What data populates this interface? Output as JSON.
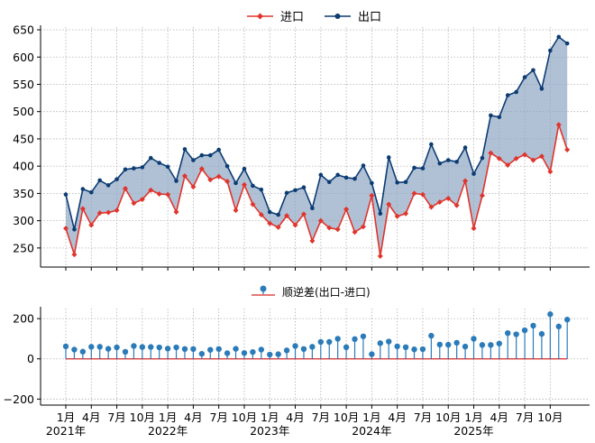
{
  "chart_data": [
    {
      "type": "line",
      "title": "",
      "legend_position": "top-center",
      "grid": true,
      "ylim": [
        215,
        655
      ],
      "yticks": [
        250,
        300,
        350,
        400,
        450,
        500,
        550,
        600,
        650
      ],
      "fill_between": true,
      "colors": {
        "import": "#e0342c",
        "export": "#0c3c73",
        "fill": "#8fa7c4"
      },
      "series": [
        {
          "name": "进口",
          "key": "import",
          "values": [
            286,
            238,
            322,
            292,
            314,
            315,
            319,
            359,
            332,
            339,
            356,
            349,
            348,
            316,
            382,
            362,
            395,
            375,
            381,
            372,
            319,
            366,
            330,
            311,
            295,
            288,
            309,
            292,
            312,
            263,
            300,
            287,
            284,
            321,
            279,
            289,
            346,
            235,
            330,
            308,
            313,
            350,
            348,
            325,
            334,
            341,
            328,
            373,
            286,
            346,
            424,
            414,
            402,
            414,
            421,
            411,
            418,
            390,
            476,
            430
          ]
        },
        {
          "name": "出口",
          "key": "export",
          "values": [
            348,
            284,
            358,
            352,
            374,
            365,
            376,
            394,
            396,
            398,
            415,
            406,
            399,
            373,
            431,
            411,
            420,
            420,
            430,
            400,
            369,
            395,
            364,
            357,
            316,
            311,
            351,
            356,
            361,
            323,
            384,
            371,
            384,
            379,
            377,
            401,
            369,
            313,
            416,
            370,
            371,
            397,
            396,
            440,
            405,
            411,
            408,
            434,
            386,
            415,
            493,
            490,
            530,
            536,
            563,
            576,
            542,
            612,
            637,
            625
          ]
        }
      ]
    },
    {
      "type": "stem",
      "legend_position": "top-center",
      "grid": true,
      "ylim": [
        -230,
        250
      ],
      "yticks": [
        -200,
        0,
        200
      ],
      "ytick_labels": [
        "−200",
        "0",
        "200"
      ],
      "baseline": 0,
      "colors": {
        "marker": "#2b7bb9",
        "stem": "#2b7bb9",
        "baseline": "#d62728"
      },
      "series": [
        {
          "name": "顺逆差(出口-进口)",
          "values": [
            62,
            46,
            36,
            60,
            60,
            50,
            57,
            35,
            64,
            59,
            59,
            57,
            51,
            57,
            49,
            49,
            25,
            45,
            49,
            28,
            50,
            29,
            34,
            46,
            21,
            23,
            42,
            64,
            49,
            60,
            84,
            84,
            100,
            58,
            98,
            112,
            23,
            78,
            86,
            62,
            58,
            47,
            48,
            115,
            71,
            70,
            80,
            61,
            100,
            69,
            69,
            76,
            128,
            122,
            142,
            165,
            124,
            222,
            161,
            195
          ]
        }
      ]
    }
  ],
  "x_axis": {
    "n_points": 60,
    "tick_labels": [
      "1月",
      "4月",
      "7月",
      "10月",
      "1月",
      "4月",
      "7月",
      "10月",
      "1月",
      "4月",
      "7月",
      "10月",
      "1月",
      "4月",
      "7月",
      "10月",
      "1月",
      "4月",
      "7月",
      "10月"
    ],
    "year_labels": [
      "2021年",
      "2022年",
      "2023年",
      "2024年",
      "2025年"
    ]
  }
}
